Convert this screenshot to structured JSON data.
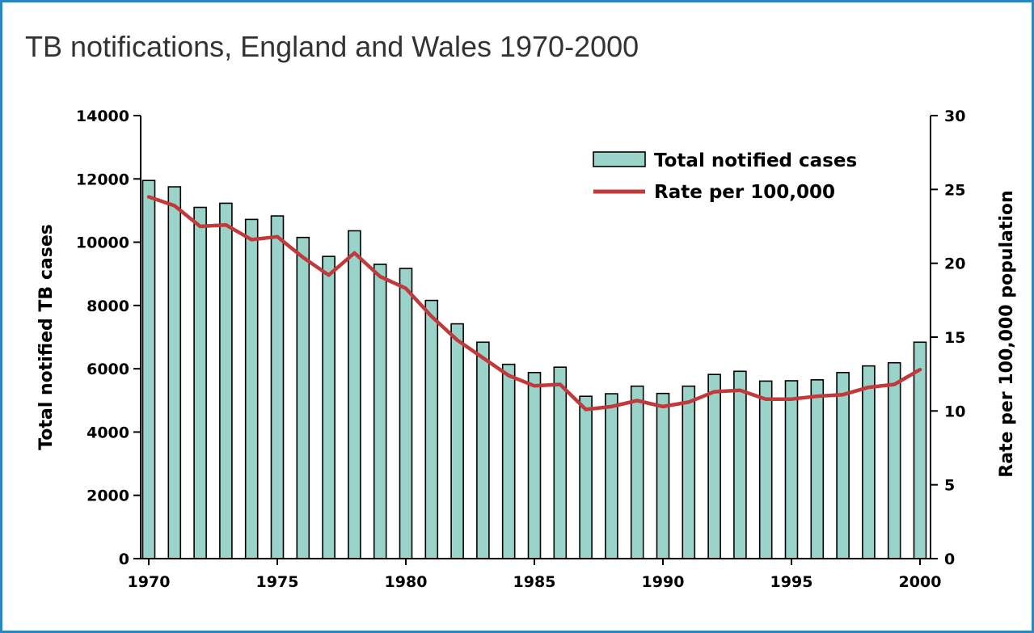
{
  "chart_data": {
    "type": "bar",
    "title": "TB notifications, England and Wales 1970-2000",
    "x": [
      1970,
      1971,
      1972,
      1973,
      1974,
      1975,
      1976,
      1977,
      1978,
      1979,
      1980,
      1981,
      1982,
      1983,
      1984,
      1985,
      1986,
      1987,
      1988,
      1989,
      1990,
      1991,
      1992,
      1993,
      1994,
      1995,
      1996,
      1997,
      1998,
      1999,
      2000
    ],
    "x_ticks": [
      1970,
      1975,
      1980,
      1985,
      1990,
      1995,
      2000
    ],
    "series": [
      {
        "name": "Total notified cases",
        "type": "bar",
        "axis": "left",
        "color": "#99d3c9",
        "values": [
          11950,
          11750,
          11100,
          11230,
          10720,
          10830,
          10150,
          9550,
          10360,
          9300,
          9170,
          8160,
          7420,
          6840,
          6140,
          5880,
          6050,
          5130,
          5210,
          5450,
          5220,
          5450,
          5820,
          5920,
          5610,
          5620,
          5650,
          5880,
          6090,
          6190,
          6840
        ]
      },
      {
        "name": "Rate per 100,000",
        "type": "line",
        "axis": "right",
        "color": "#c0393b",
        "values": [
          24.5,
          23.9,
          22.5,
          22.6,
          21.6,
          21.8,
          20.4,
          19.2,
          20.7,
          19.1,
          18.3,
          16.4,
          14.8,
          13.6,
          12.4,
          11.7,
          11.8,
          10.1,
          10.3,
          10.7,
          10.3,
          10.6,
          11.3,
          11.4,
          10.8,
          10.8,
          11.0,
          11.1,
          11.6,
          11.8,
          12.8
        ]
      }
    ],
    "ylabel": "Total notified TB cases",
    "ylim": [
      0,
      14000
    ],
    "y_ticks": [
      0,
      2000,
      4000,
      6000,
      8000,
      10000,
      12000,
      14000
    ],
    "y2label": "Rate per 100,000 population",
    "y2lim": [
      0,
      30
    ],
    "y2_ticks": [
      0,
      5,
      10,
      15,
      20,
      25,
      30
    ],
    "legend": "top-right",
    "grid": false
  }
}
